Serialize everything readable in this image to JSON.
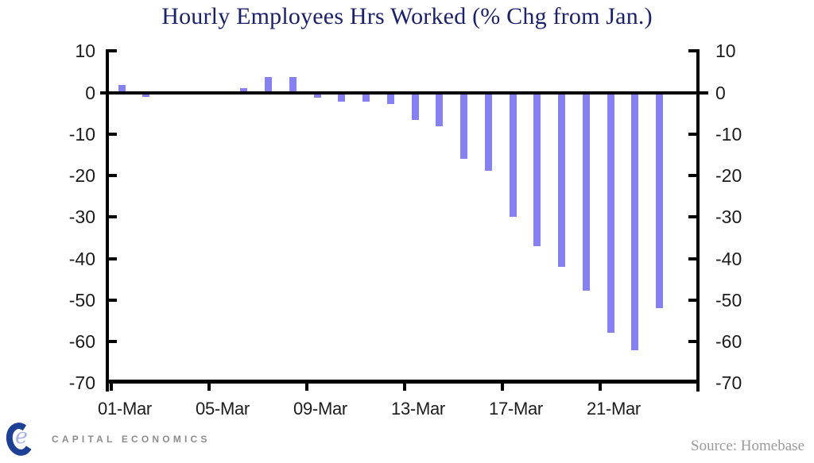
{
  "chart_data": {
    "type": "bar",
    "title": "Hourly Employees Hrs Worked (% Chg from Jan.)",
    "categories": [
      "01-Mar",
      "02-Mar",
      "03-Mar",
      "04-Mar",
      "05-Mar",
      "06-Mar",
      "07-Mar",
      "08-Mar",
      "09-Mar",
      "10-Mar",
      "11-Mar",
      "12-Mar",
      "13-Mar",
      "14-Mar",
      "15-Mar",
      "16-Mar",
      "17-Mar",
      "18-Mar",
      "19-Mar",
      "20-Mar",
      "21-Mar",
      "22-Mar",
      "23-Mar"
    ],
    "values": [
      1.9,
      -1.1,
      0,
      0,
      0,
      1.0,
      3.8,
      3.8,
      -1.2,
      -2.2,
      -2.2,
      -2.7,
      -6.5,
      -8.1,
      -15.9,
      -18.9,
      -30.0,
      -37.0,
      -42.0,
      -47.7,
      -57.9,
      -62.1,
      -51.9
    ],
    "xlabel": "",
    "ylabel": "",
    "ylim": [
      -70,
      10
    ],
    "y_ticks": [
      10,
      0,
      -10,
      -20,
      -30,
      -40,
      -50,
      -60,
      -70
    ],
    "x_tick_labels": [
      "01-Mar",
      "05-Mar",
      "09-Mar",
      "13-Mar",
      "17-Mar",
      "21-Mar"
    ],
    "x_tick_days": [
      1,
      5,
      9,
      13,
      17,
      21
    ],
    "mirrored_right_axis": true,
    "grid": false,
    "legend": "none",
    "bar_color": "#8581f2",
    "axis_color": "#000000"
  },
  "footer": {
    "logo_text": "CAPITAL ECONOMICS",
    "logo_letter_c": "",
    "logo_letter_e": "e",
    "source": "Source: Homebase"
  },
  "colors": {
    "title": "#1c2268",
    "bar": "#8581f2",
    "axis_label": "#1c1c1c",
    "source_text": "#9a9a9a",
    "logo_navy": "#1d3f94",
    "logo_periwinkle": "#a8b2e6",
    "logo_gray": "#8d8d8d"
  }
}
